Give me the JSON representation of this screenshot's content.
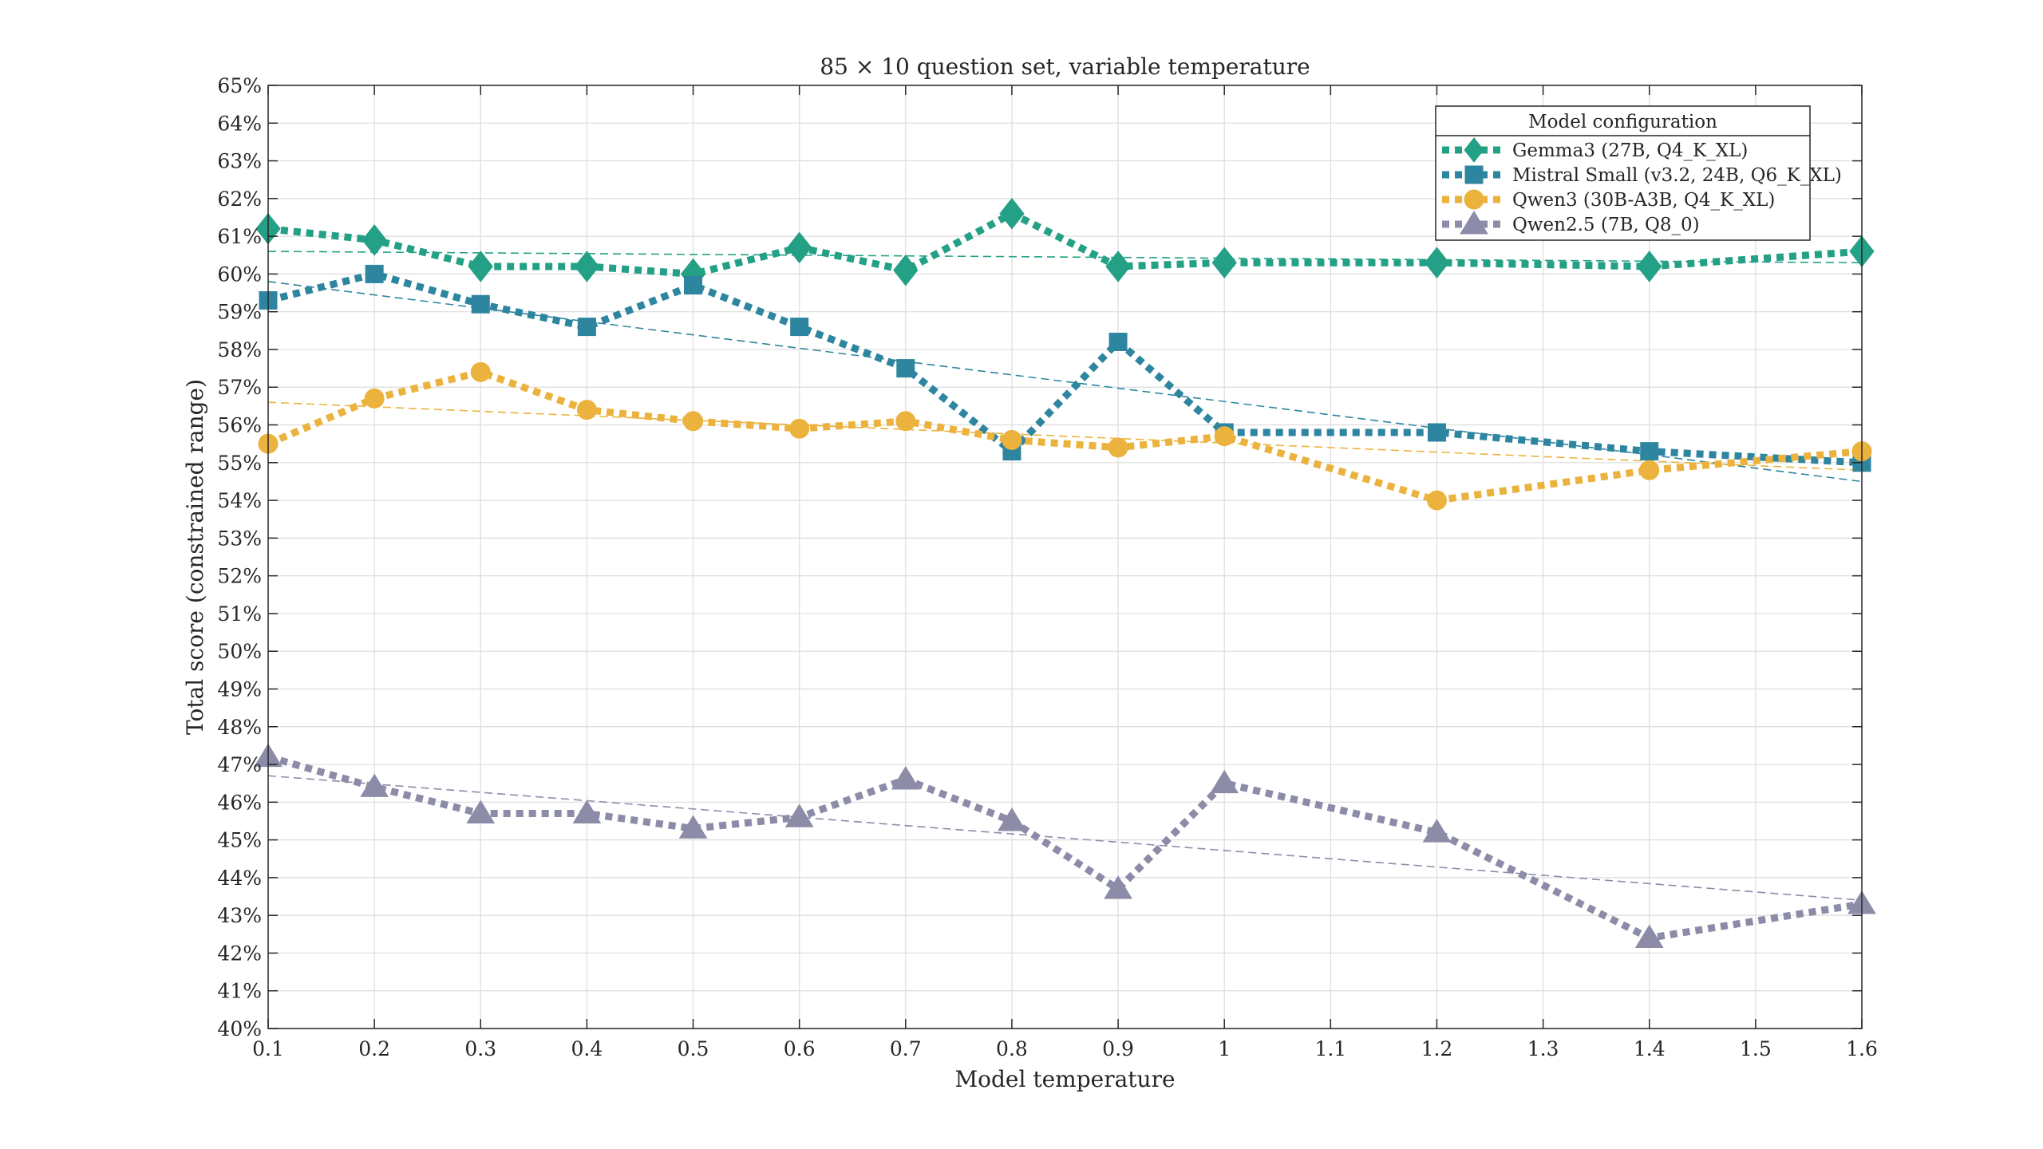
{
  "chart_data": {
    "type": "line",
    "title": "85 × 10 question set, variable temperature",
    "xlabel": "Model temperature",
    "ylabel": "Total score (constrained range)",
    "xlim": [
      0.1,
      1.6
    ],
    "ylim": [
      40,
      65
    ],
    "x_ticks": [
      "0.1",
      "0.2",
      "0.3",
      "0.4",
      "0.5",
      "0.6",
      "0.7",
      "0.8",
      "0.9",
      "1",
      "1.1",
      "1.2",
      "1.3",
      "1.4",
      "1.5",
      "1.6"
    ],
    "y_ticks": [
      "40%",
      "41%",
      "42%",
      "43%",
      "44%",
      "45%",
      "46%",
      "47%",
      "48%",
      "49%",
      "50%",
      "51%",
      "52%",
      "53%",
      "54%",
      "55%",
      "56%",
      "57%",
      "58%",
      "59%",
      "60%",
      "61%",
      "62%",
      "63%",
      "64%",
      "65%"
    ],
    "grid": true,
    "legend": {
      "title": "Model configuration",
      "position": "top-right"
    },
    "x": [
      0.1,
      0.2,
      0.3,
      0.4,
      0.5,
      0.6,
      0.7,
      0.8,
      0.9,
      1.0,
      1.2,
      1.4,
      1.6
    ],
    "series": [
      {
        "name": "Gemma3 (27B, Q4_K_XL)",
        "color": "#23a085",
        "marker": "diamond",
        "values": [
          61.2,
          60.9,
          60.2,
          60.2,
          60.0,
          60.7,
          60.1,
          61.6,
          60.2,
          60.3,
          60.3,
          60.2,
          60.6
        ],
        "trend": [
          60.6,
          60.3
        ]
      },
      {
        "name": "Mistral Small (v3.2, 24B, Q6_K_XL)",
        "color": "#2e85a0",
        "marker": "square",
        "values": [
          59.3,
          60.0,
          59.2,
          58.6,
          59.7,
          58.6,
          57.5,
          55.3,
          58.2,
          55.8,
          55.8,
          55.3,
          55.0
        ],
        "trend": [
          59.8,
          54.5
        ]
      },
      {
        "name": "Qwen3 (30B-A3B, Q4_K_XL)",
        "color": "#ebb33d",
        "marker": "circle",
        "values": [
          55.5,
          56.7,
          57.4,
          56.4,
          56.1,
          55.9,
          56.1,
          55.6,
          55.4,
          55.7,
          54.0,
          54.8,
          55.3
        ],
        "trend": [
          56.6,
          54.8
        ]
      },
      {
        "name": "Qwen2.5 (7B, Q8_0)",
        "color": "#8c8ca8",
        "marker": "triangle",
        "values": [
          47.2,
          46.4,
          45.7,
          45.7,
          45.3,
          45.6,
          46.6,
          45.5,
          43.7,
          46.5,
          45.2,
          42.4,
          43.3
        ],
        "trend": [
          46.7,
          43.4
        ]
      }
    ]
  }
}
